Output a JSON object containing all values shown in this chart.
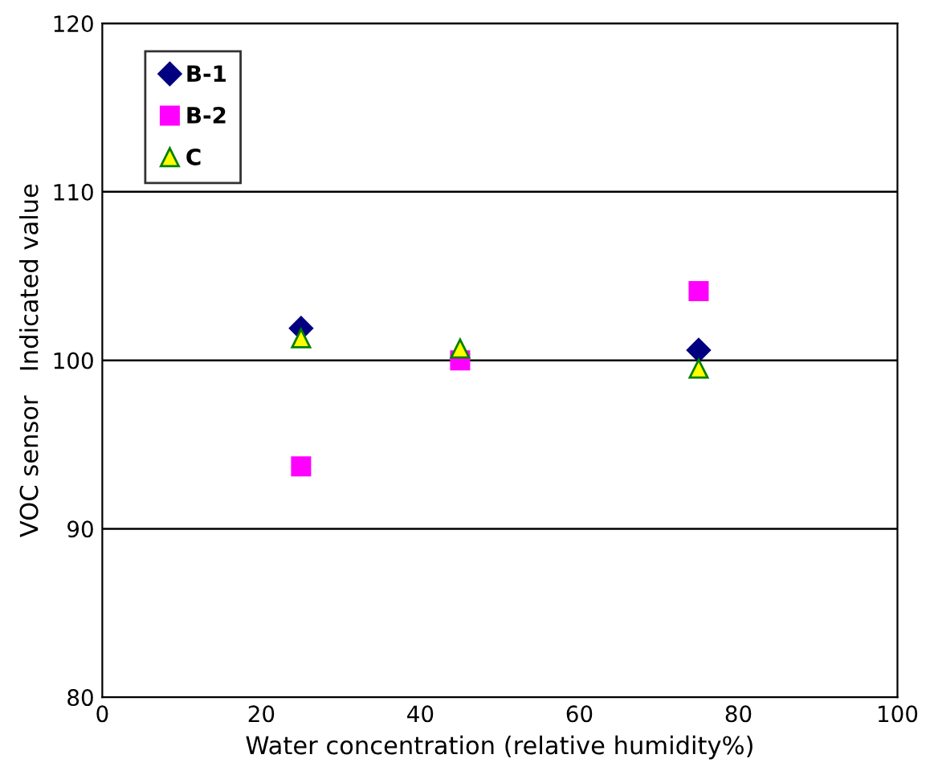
{
  "chart_data": {
    "type": "scatter",
    "xlabel": "Water concentration (relative humidity%)",
    "ylabel": "VOC sensor   Indicated value",
    "xlim": [
      0,
      100
    ],
    "xticks": [
      0,
      20,
      40,
      60,
      80,
      100
    ],
    "ylim": [
      80,
      120
    ],
    "yticks": [
      80,
      90,
      100,
      110,
      120
    ],
    "grid": "y",
    "legend": "top left",
    "series": [
      {
        "name": "B-1",
        "color": "#000080",
        "marker": "diamond",
        "x": [
          25,
          75
        ],
        "values": [
          101.9,
          100.6
        ]
      },
      {
        "name": "B-2",
        "color": "#ff00ff",
        "marker": "square",
        "x": [
          25,
          45,
          75
        ],
        "values": [
          93.7,
          100.0,
          104.1
        ]
      },
      {
        "name": "C",
        "color": "#ffff00",
        "marker": "triangle",
        "x": [
          25,
          45,
          75
        ],
        "values": [
          101.3,
          100.7,
          99.5
        ]
      }
    ]
  }
}
